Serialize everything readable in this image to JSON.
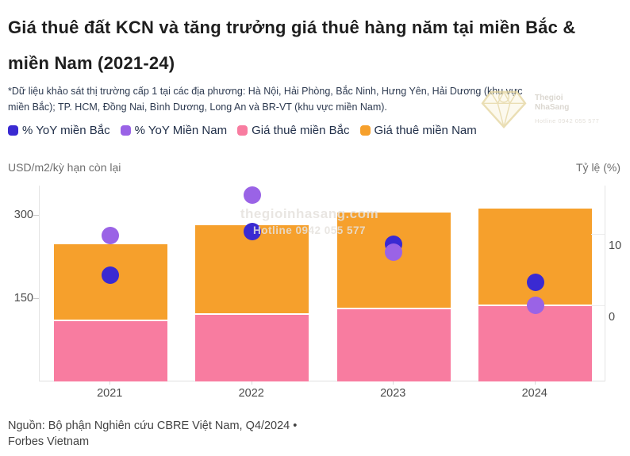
{
  "header": {
    "title": "Giá thuê đất KCN và tăng trưởng giá thuê hàng năm tại miền Bắc & miền Nam (2021-24)",
    "subtitle": "*Dữ liệu khảo sát thị trường cấp 1 tại các địa phương: Hà Nội, Hải Phòng, Bắc Ninh, Hưng Yên, Hải Dương (khu vực miền Bắc); TP. HCM, Đồng Nai, Bình Dương, Long An và BR-VT (khu vực miền Nam)."
  },
  "legend": [
    {
      "label": "% YoY miền Bắc",
      "color": "#3a2ad2"
    },
    {
      "label": "% YoY Miền Nam",
      "color": "#9a63e6"
    },
    {
      "label": "Giá thuê miền Bắc",
      "color": "#f87ca0"
    },
    {
      "label": "Giá thuê miền Nam",
      "color": "#f6a02c"
    }
  ],
  "axes": {
    "left_caption": "USD/m2/kỳ hạn còn lại",
    "right_caption": "Tỷ lệ (%)"
  },
  "chart_data": {
    "type": "combo",
    "subtype": "stacked bars (left axis) with YoY dots (right axis)",
    "categories": [
      "2021",
      "2022",
      "2023",
      "2024"
    ],
    "series": [
      {
        "name": "Giá thuê miền Bắc",
        "type": "bar",
        "axis": "left",
        "color": "#f87ca0",
        "values": [
          110,
          121,
          131,
          137
        ]
      },
      {
        "name": "Giá thuê miền Nam",
        "type": "bar",
        "axis": "left",
        "color": "#f6a02c",
        "values": [
          137,
          160,
          173,
          175
        ]
      },
      {
        "name": "% YoY miền Bắc",
        "type": "dot",
        "axis": "right",
        "color": "#3a2ad2",
        "values": [
          4.2,
          10.3,
          8.6,
          3.2
        ]
      },
      {
        "name": "% YoY Miền Nam",
        "type": "dot",
        "axis": "right",
        "color": "#9a63e6",
        "values": [
          9.8,
          15.5,
          7.4,
          0.0
        ]
      }
    ],
    "left_axis": {
      "label": "USD/m2/kỳ hạn còn lại",
      "ticks": [
        150,
        300
      ],
      "range": [
        0,
        353
      ]
    },
    "right_axis": {
      "label": "Tỷ lệ (%)",
      "ticks": [
        0,
        10
      ],
      "range": [
        -10.7,
        16.8
      ]
    },
    "grid": "minimal",
    "legend_position": "top-left",
    "stacked": true
  },
  "watermark": {
    "center_line1": "thegioinhasang.com",
    "center_line2": "Hotline 0942 055 577",
    "logo_name_line1": "Thegioi",
    "logo_name_line2": "NhaSang",
    "logo_hotline": "Hotline 0942 055 577"
  },
  "source": {
    "line1": "Nguồn: Bộ phận Nghiên cứu CBRE Việt Nam, Q4/2024 •",
    "line2": "Forbes Vietnam"
  }
}
